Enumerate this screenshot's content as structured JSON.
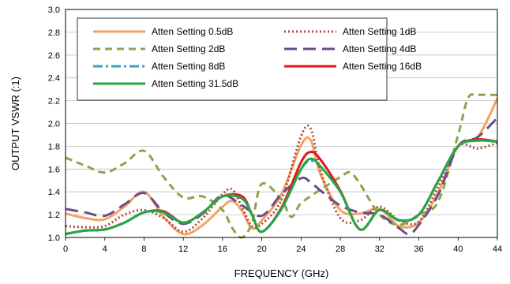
{
  "chart_data": {
    "type": "line",
    "xlabel": "FREQUENCY (GHz)",
    "ylabel": "OUTPUT VSWR (:1)",
    "xlim": [
      0,
      44
    ],
    "ylim": [
      1.0,
      3.0
    ],
    "xticks": [
      "0",
      "4",
      "8",
      "12",
      "16",
      "20",
      "24",
      "28",
      "32",
      "36",
      "40",
      "44"
    ],
    "yticks": [
      "1.0",
      "1.2",
      "1.4",
      "1.6",
      "1.8",
      "2.0",
      "2.2",
      "2.4",
      "2.6",
      "2.8",
      "3.0"
    ],
    "grid": "horizontal",
    "legend_position": "top",
    "series": [
      {
        "name": "Atten Setting 0.5dB",
        "color": "#f4a261",
        "dash": "solid",
        "x": [
          0,
          2,
          4,
          6,
          8,
          10,
          12,
          14,
          16,
          17,
          18,
          19,
          20,
          22,
          24,
          25,
          26,
          28,
          30,
          32,
          34,
          36,
          38,
          40,
          42,
          44
        ],
        "y": [
          1.21,
          1.17,
          1.16,
          1.27,
          1.4,
          1.18,
          1.03,
          1.11,
          1.27,
          1.32,
          1.23,
          1.08,
          1.15,
          1.38,
          1.81,
          1.85,
          1.55,
          1.24,
          1.21,
          1.25,
          1.1,
          1.13,
          1.4,
          1.8,
          1.88,
          2.22
        ]
      },
      {
        "name": "Atten Setting 1dB",
        "color": "#b04a3a",
        "dash": "dot",
        "x": [
          0,
          2,
          4,
          6,
          8,
          10,
          12,
          14,
          16,
          17,
          18,
          19,
          20,
          22,
          24,
          25,
          26,
          28,
          30,
          32,
          34,
          36,
          38,
          40,
          42,
          44
        ],
        "y": [
          1.1,
          1.09,
          1.1,
          1.2,
          1.24,
          1.17,
          1.05,
          1.17,
          1.38,
          1.42,
          1.26,
          1.1,
          1.12,
          1.33,
          1.89,
          1.95,
          1.58,
          1.17,
          1.15,
          1.27,
          1.15,
          1.14,
          1.45,
          1.8,
          1.78,
          1.83
        ]
      },
      {
        "name": "Atten Setting 2dB",
        "color": "#8aa64c",
        "dash": "dash",
        "x": [
          0,
          2,
          4,
          6,
          8,
          10,
          12,
          14,
          16,
          17,
          18,
          19,
          20,
          22,
          23,
          24,
          26,
          28,
          29,
          30,
          32,
          34,
          36,
          38,
          40,
          41,
          42,
          44
        ],
        "y": [
          1.7,
          1.63,
          1.57,
          1.65,
          1.76,
          1.53,
          1.35,
          1.36,
          1.24,
          1.08,
          1.0,
          1.13,
          1.47,
          1.33,
          1.18,
          1.3,
          1.42,
          1.53,
          1.57,
          1.47,
          1.2,
          1.11,
          1.2,
          1.32,
          1.9,
          2.22,
          2.25,
          2.25
        ]
      },
      {
        "name": "Atten Setting 4dB",
        "color": "#6a4c8c",
        "dash": "longdash",
        "x": [
          0,
          2,
          4,
          6,
          8,
          10,
          12,
          14,
          16,
          18,
          20,
          22,
          24,
          25,
          26,
          28,
          30,
          32,
          34,
          35,
          36,
          38,
          40,
          42,
          44
        ],
        "y": [
          1.25,
          1.22,
          1.19,
          1.29,
          1.39,
          1.22,
          1.12,
          1.21,
          1.37,
          1.28,
          1.19,
          1.38,
          1.52,
          1.48,
          1.41,
          1.28,
          1.22,
          1.2,
          1.08,
          1.03,
          1.11,
          1.38,
          1.8,
          1.88,
          2.05
        ]
      },
      {
        "name": "Atten Setting 8dB",
        "color": "#3b9fc0",
        "dash": "dashdot",
        "x": [
          0,
          2,
          4,
          6,
          8,
          10,
          12,
          14,
          16,
          18,
          19,
          20,
          22,
          24,
          25,
          26,
          28,
          30,
          32,
          34,
          36,
          38,
          40,
          42,
          44
        ],
        "y": [
          1.03,
          1.06,
          1.07,
          1.13,
          1.22,
          1.22,
          1.13,
          1.22,
          1.36,
          1.34,
          1.2,
          1.05,
          1.25,
          1.6,
          1.67,
          1.62,
          1.4,
          1.07,
          1.24,
          1.15,
          1.2,
          1.5,
          1.8,
          1.85,
          1.84
        ]
      },
      {
        "name": "Atten Setting 16dB",
        "color": "#e4161b",
        "dash": "solid",
        "x": [
          0,
          2,
          4,
          6,
          8,
          10,
          12,
          14,
          16,
          18,
          19,
          20,
          22,
          24,
          25,
          26,
          28,
          30,
          32,
          34,
          36,
          38,
          40,
          42,
          44
        ],
        "y": [
          1.03,
          1.06,
          1.07,
          1.13,
          1.22,
          1.23,
          1.13,
          1.22,
          1.36,
          1.36,
          1.2,
          1.05,
          1.26,
          1.66,
          1.75,
          1.68,
          1.41,
          1.07,
          1.24,
          1.15,
          1.2,
          1.5,
          1.8,
          1.86,
          1.84
        ]
      },
      {
        "name": "Atten Setting 31.5dB",
        "color": "#23a845",
        "dash": "solid",
        "x": [
          0,
          2,
          4,
          6,
          8,
          10,
          12,
          14,
          16,
          18,
          19,
          20,
          22,
          24,
          25,
          26,
          28,
          30,
          32,
          34,
          36,
          38,
          40,
          42,
          44
        ],
        "y": [
          1.03,
          1.06,
          1.07,
          1.13,
          1.22,
          1.22,
          1.13,
          1.22,
          1.36,
          1.34,
          1.2,
          1.05,
          1.25,
          1.6,
          1.69,
          1.62,
          1.4,
          1.07,
          1.24,
          1.15,
          1.2,
          1.5,
          1.8,
          1.85,
          1.84
        ]
      }
    ]
  }
}
